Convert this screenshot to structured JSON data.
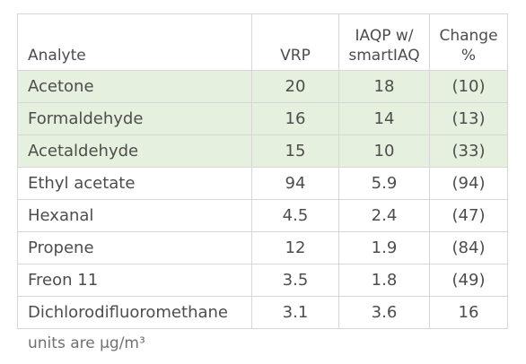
{
  "table": {
    "headers": {
      "analyte": "Analyte",
      "vrp": "VRP",
      "iaqp_line1": "IAQP w/",
      "iaqp_line2": "smartIAQ",
      "change_line1": "Change",
      "change_line2": "%"
    },
    "highlight_color": "#e6f0de",
    "rows": [
      {
        "analyte": "Acetone",
        "vrp": "20",
        "iaqp": "18",
        "change": "(10)",
        "highlighted": true
      },
      {
        "analyte": "Formaldehyde",
        "vrp": "16",
        "iaqp": "14",
        "change": "(13)",
        "highlighted": true
      },
      {
        "analyte": "Acetaldehyde",
        "vrp": "15",
        "iaqp": "10",
        "change": "(33)",
        "highlighted": true
      },
      {
        "analyte": "Ethyl acetate",
        "vrp": "94",
        "iaqp": "5.9",
        "change": "(94)",
        "highlighted": false
      },
      {
        "analyte": "Hexanal",
        "vrp": "4.5",
        "iaqp": "2.4",
        "change": "(47)",
        "highlighted": false
      },
      {
        "analyte": "Propene",
        "vrp": "12",
        "iaqp": "1.9",
        "change": "(84)",
        "highlighted": false
      },
      {
        "analyte": "Freon 11",
        "vrp": "3.5",
        "iaqp": "1.8",
        "change": "(49)",
        "highlighted": false
      },
      {
        "analyte": "Dichlorodifluoromethane",
        "vrp": "3.1",
        "iaqp": "3.6",
        "change": "16",
        "highlighted": false
      }
    ]
  },
  "footnote": "units are µg/m³"
}
